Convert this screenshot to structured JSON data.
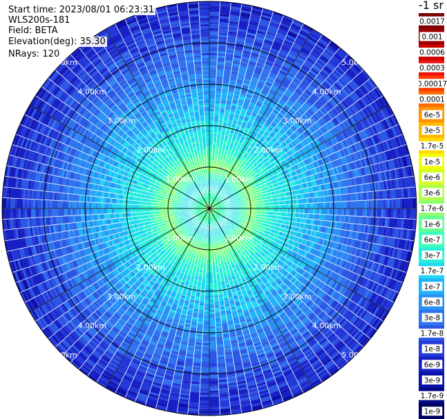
{
  "header": {
    "start_time": "Start time: 2023/08/01 06:23:31",
    "instrument": "WLS200s-181",
    "field": "Field: BETA",
    "elevation": "Elevation(deg): 35.30",
    "nrays": "NRays: 120"
  },
  "colorbar": {
    "unit_label": "-1 sr",
    "labels": [
      "0.0017",
      "0.001",
      "0.0006",
      "0.0003",
      "0.00017",
      "0.0001",
      "6e-5",
      "3e-5",
      "1.7e-5",
      "1e-5",
      "6e-6",
      "3e-6",
      "1.7e-6",
      "1e-6",
      "6e-7",
      "3e-7",
      "1.7e-7",
      "1e-7",
      "6e-8",
      "3e-8",
      "1.7e-8",
      "1e-8",
      "6e-9",
      "3e-9",
      "1.7e-9",
      "1e-9"
    ],
    "colors": [
      "#7a0000",
      "#9e0000",
      "#c80000",
      "#ee1010",
      "#ff3a00",
      "#ff6a00",
      "#ff9400",
      "#ffba00",
      "#ffdc00",
      "#f4ff00",
      "#d6ff20",
      "#b0ff4a",
      "#8cff6e",
      "#66ff94",
      "#40ffba",
      "#28f0d8",
      "#20d8f0",
      "#22b4f8",
      "#2a92f6",
      "#2f74ee",
      "#2c56e4",
      "#2238d8",
      "#1620c4",
      "#0c10a8",
      "#040884",
      "#00005e"
    ]
  },
  "chart_data": {
    "type": "heatmap",
    "projection": "polar",
    "field": "BETA",
    "elevation_deg": 35.3,
    "n_rays": 120,
    "max_range_km": 5.0,
    "range_ring_labels": [
      "1.00km",
      "2.00km",
      "3.00km",
      "4.00km",
      "5.00km"
    ],
    "range_rings_km": [
      1,
      2,
      3,
      4,
      5
    ],
    "radial_spokes_deg": [
      0,
      30,
      60,
      90,
      120,
      150,
      180,
      210,
      240,
      270,
      300,
      330
    ],
    "value_profile": [
      {
        "range_km": 0.0,
        "beta": "1.7e-6"
      },
      {
        "range_km": 0.6,
        "beta": "1.7e-7"
      },
      {
        "range_km": 1.0,
        "beta": "1.7e-6"
      },
      {
        "range_km": 1.5,
        "beta": "3e-7"
      },
      {
        "range_km": 2.5,
        "beta": "1e-7"
      },
      {
        "range_km": 3.5,
        "beta": "3e-8"
      },
      {
        "range_km": 4.5,
        "beta": "1e-8"
      },
      {
        "range_km": 5.0,
        "beta": "6e-9"
      }
    ],
    "colorbar_scale": "log",
    "colorbar_range": [
      "1e-9",
      "0.0017"
    ]
  }
}
